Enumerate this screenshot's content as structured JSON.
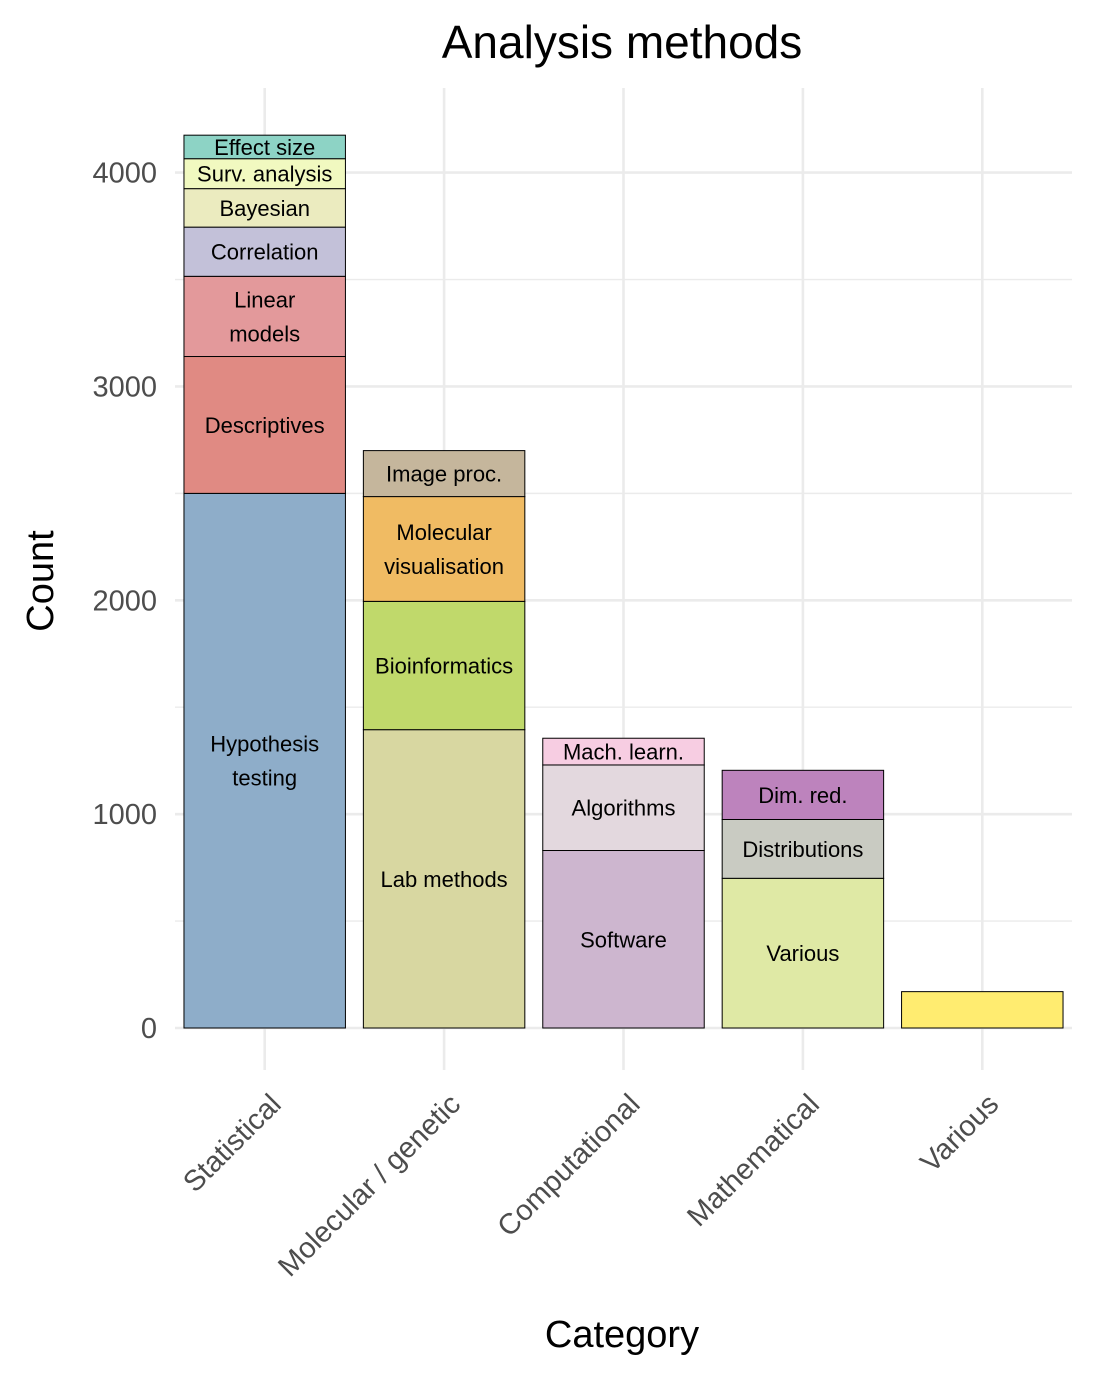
{
  "chart_data": {
    "type": "bar",
    "stacked": true,
    "title": "Analysis methods",
    "xlabel": "Category",
    "ylabel": "Count",
    "ylim": [
      -170,
      4400
    ],
    "y_ticks": [
      0,
      1000,
      2000,
      3000,
      4000
    ],
    "grid": true,
    "categories": [
      "Statistical",
      "Molecular / genetic",
      "Computational",
      "Mathematical",
      "Various"
    ],
    "bars": [
      {
        "category": "Statistical",
        "segments": [
          {
            "label": "Hypothesis testing",
            "lines": [
              "Hypothesis",
              "testing"
            ],
            "value": 2500,
            "color": "#8eadc9"
          },
          {
            "label": "Descriptives",
            "lines": [
              "Descriptives"
            ],
            "value": 640,
            "color": "#e08a83"
          },
          {
            "label": "Linear models",
            "lines": [
              "Linear",
              "models"
            ],
            "value": 375,
            "color": "#e3999b"
          },
          {
            "label": "Correlation",
            "lines": [
              "Correlation"
            ],
            "value": 230,
            "color": "#c3c1d9"
          },
          {
            "label": "Bayesian",
            "lines": [
              "Bayesian"
            ],
            "value": 180,
            "color": "#ebebbf"
          },
          {
            "label": "Surv. analysis",
            "lines": [
              "Surv. analysis"
            ],
            "value": 140,
            "color": "#f1f9c0"
          },
          {
            "label": "Effect size",
            "lines": [
              "Effect size"
            ],
            "value": 110,
            "color": "#8dd3c5"
          }
        ]
      },
      {
        "category": "Molecular / genetic",
        "segments": [
          {
            "label": "Lab methods",
            "lines": [
              "Lab methods"
            ],
            "value": 1395,
            "color": "#d8d7a1"
          },
          {
            "label": "Bioinformatics",
            "lines": [
              "Bioinformatics"
            ],
            "value": 600,
            "color": "#c0d96b"
          },
          {
            "label": "Molecular visualisation",
            "lines": [
              "Molecular",
              "visualisation"
            ],
            "value": 490,
            "color": "#f0bb63"
          },
          {
            "label": "Image proc.",
            "lines": [
              "Image proc."
            ],
            "value": 215,
            "color": "#c5b69c"
          }
        ]
      },
      {
        "category": "Computational",
        "segments": [
          {
            "label": "Software",
            "lines": [
              "Software"
            ],
            "value": 830,
            "color": "#cdb6cf"
          },
          {
            "label": "Algorithms",
            "lines": [
              "Algorithms"
            ],
            "value": 400,
            "color": "#e3d8de"
          },
          {
            "label": "Mach. learn.",
            "lines": [
              "Mach. learn."
            ],
            "value": 125,
            "color": "#f7cde2"
          }
        ]
      },
      {
        "category": "Mathematical",
        "segments": [
          {
            "label": "Various",
            "lines": [
              "Various"
            ],
            "value": 700,
            "color": "#dfe9a5"
          },
          {
            "label": "Distributions",
            "lines": [
              "Distributions"
            ],
            "value": 275,
            "color": "#c9cbc2"
          },
          {
            "label": "Dim. red.",
            "lines": [
              "Dim. red."
            ],
            "value": 230,
            "color": "#bd83bd"
          }
        ]
      },
      {
        "category": "Various",
        "segments": [
          {
            "label": "Various",
            "lines": [],
            "value": 170,
            "color": "#ffec70"
          }
        ]
      }
    ]
  }
}
